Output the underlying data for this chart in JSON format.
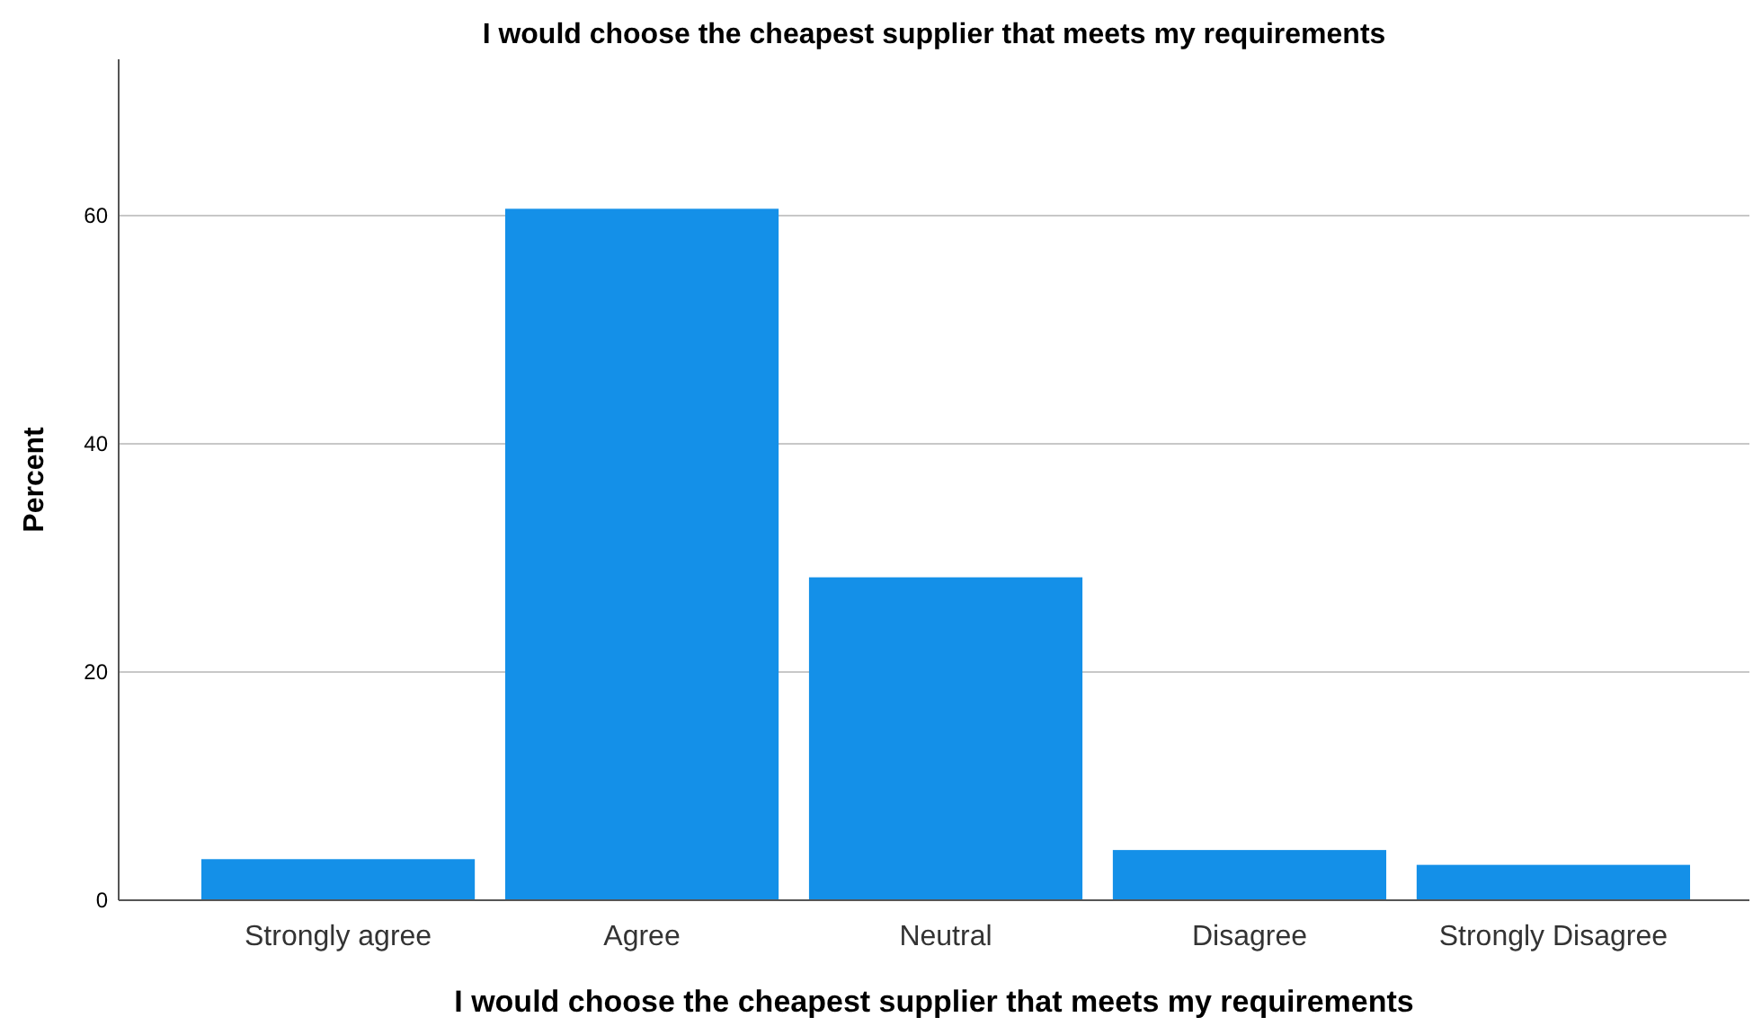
{
  "chart_data": {
    "type": "bar",
    "title": "I would choose the cheapest supplier that meets my requirements",
    "xlabel": "I would choose the cheapest supplier that meets my requirements",
    "ylabel": "Percent",
    "categories": [
      "Strongly agree",
      "Agree",
      "Neutral",
      "Disagree",
      "Strongly Disagree"
    ],
    "values": [
      3.6,
      60.6,
      28.3,
      4.4,
      3.1
    ],
    "color": "#1490e8",
    "ylim": [
      0,
      73.7
    ],
    "yticks": [
      0,
      20,
      40,
      60
    ],
    "grid": "y"
  }
}
